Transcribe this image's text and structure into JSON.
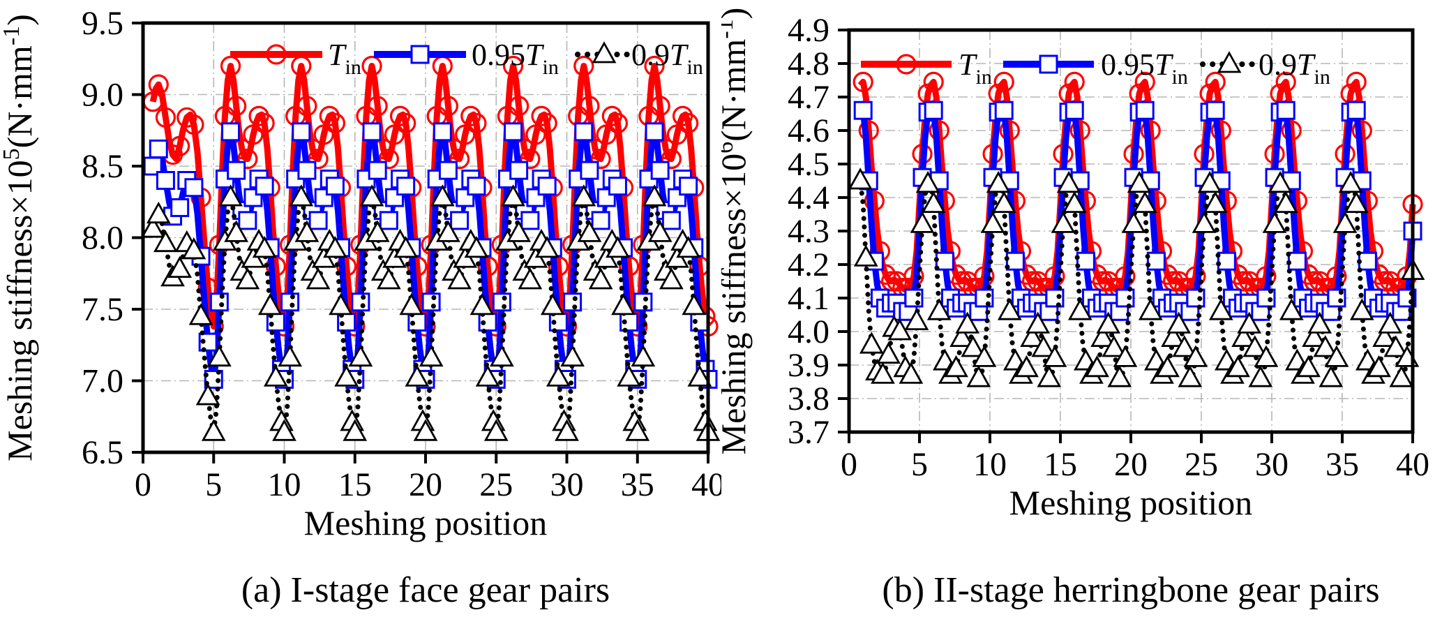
{
  "chart_data": [
    {
      "id": "a",
      "type": "line",
      "caption": "(a) I-stage face gear pairs",
      "xlabel": "Meshing position",
      "ylabel_parts": [
        {
          "t": "Meshing stiffness×10"
        },
        {
          "sup": "5"
        },
        {
          "t": "(N·mm"
        },
        {
          "sup": "-1"
        },
        {
          "t": ")"
        }
      ],
      "xlim": [
        0,
        40
      ],
      "ylim": [
        6.5,
        9.5
      ],
      "xticks": [
        0,
        5,
        10,
        15,
        20,
        25,
        30,
        35,
        40
      ],
      "xtick_labels": [
        "0",
        "5",
        "10",
        "15",
        "20",
        "25",
        "30",
        "35",
        "40"
      ],
      "yticks": [
        6.5,
        7.0,
        7.5,
        8.0,
        8.5,
        9.0,
        9.5
      ],
      "ytick_labels": [
        "6.5",
        "7.0",
        "7.5",
        "8.0",
        "8.5",
        "9.0",
        "9.5"
      ],
      "grid_x": [
        5,
        10,
        15,
        20,
        25,
        30,
        35
      ],
      "grid_y": [
        7.0,
        7.5,
        8.0,
        8.5,
        9.0
      ],
      "grid": true,
      "legend_position": "top-inside",
      "period": 5,
      "periods": 8,
      "phase": [
        0,
        0.2,
        0.4,
        0.6,
        0.8,
        1,
        1.2,
        1.4,
        1.6,
        1.8,
        2,
        2.2,
        2.4,
        2.6,
        2.8,
        3,
        3.2,
        3.4,
        3.6,
        3.8,
        4,
        4.2,
        4.4,
        4.6,
        4.8
      ],
      "legend": [
        {
          "prefix": "",
          "main": "T",
          "sub": "in"
        },
        {
          "prefix": "0.95",
          "main": "T",
          "sub": "in"
        },
        {
          "prefix": "0.9",
          "main": "T",
          "sub": "in"
        }
      ],
      "series": [
        {
          "name": "Tin",
          "color": "#ff0000",
          "line": "solid",
          "marker": "circle",
          "first_phase": [
            0.7,
            0.9,
            1.1,
            1.35,
            1.6,
            1.85,
            2.1,
            2.35,
            2.6,
            2.85,
            3.1,
            3.35,
            3.6,
            3.85,
            4.1,
            4.35,
            4.6,
            4.8
          ],
          "first_values": [
            8.95,
            9.04,
            9.07,
            9.0,
            8.84,
            8.68,
            8.58,
            8.55,
            8.64,
            8.76,
            8.84,
            8.86,
            8.79,
            8.6,
            8.28,
            7.95,
            7.65,
            7.48
          ],
          "values": [
            7.38,
            7.55,
            7.95,
            8.45,
            8.85,
            9.1,
            9.2,
            9.1,
            8.92,
            8.74,
            8.62,
            8.56,
            8.55,
            8.62,
            8.72,
            8.8,
            8.85,
            8.86,
            8.8,
            8.62,
            8.35,
            8.05,
            7.8,
            7.6,
            7.45
          ]
        },
        {
          "name": "0.95Tin",
          "color": "#0000ff",
          "line": "solid",
          "marker": "square",
          "first_phase": [
            0.7,
            0.9,
            1.1,
            1.35,
            1.6,
            1.85,
            2.1,
            2.35,
            2.6,
            2.85,
            3.1,
            3.35,
            3.6,
            3.85,
            4.1,
            4.35,
            4.6,
            4.8
          ],
          "first_values": [
            8.5,
            8.59,
            8.62,
            8.55,
            8.4,
            8.25,
            8.15,
            8.12,
            8.21,
            8.32,
            8.4,
            8.42,
            8.35,
            8.17,
            7.87,
            7.55,
            7.27,
            7.11
          ],
          "values": [
            7.01,
            7.17,
            7.55,
            8.03,
            8.41,
            8.65,
            8.74,
            8.65,
            8.47,
            8.3,
            8.19,
            8.13,
            8.12,
            8.19,
            8.28,
            8.36,
            8.41,
            8.42,
            8.36,
            8.19,
            7.93,
            7.65,
            7.41,
            7.22,
            7.08
          ]
        },
        {
          "name": "0.9Tin",
          "color": "#000000",
          "line": "dotted",
          "marker": "triangle",
          "first_phase": [
            0.7,
            0.9,
            1.1,
            1.35,
            1.6,
            1.85,
            2.1,
            2.35,
            2.6,
            2.85,
            3.1,
            3.35,
            3.6,
            3.85,
            4.1,
            4.35,
            4.6,
            4.8
          ],
          "first_values": [
            8.06,
            8.14,
            8.16,
            8.1,
            7.96,
            7.81,
            7.72,
            7.7,
            7.78,
            7.88,
            7.96,
            7.97,
            7.91,
            7.74,
            7.45,
            7.16,
            6.89,
            6.73
          ],
          "values": [
            6.64,
            6.8,
            7.16,
            7.61,
            7.97,
            8.19,
            8.28,
            8.19,
            8.03,
            7.87,
            7.76,
            7.7,
            7.7,
            7.76,
            7.85,
            7.92,
            7.97,
            7.97,
            7.92,
            7.76,
            7.52,
            7.25,
            7.02,
            6.84,
            6.71
          ]
        }
      ]
    },
    {
      "id": "b",
      "type": "line",
      "caption": "(b) II-stage herringbone gear pairs",
      "xlabel": "Meshing position",
      "ylabel_parts": [
        {
          "t": "Meshing stiffness×10"
        },
        {
          "sup": "6"
        },
        {
          "t": "(N·mm"
        },
        {
          "sup": "-1"
        },
        {
          "t": ")"
        }
      ],
      "xlim": [
        0,
        40
      ],
      "ylim": [
        3.7,
        4.9
      ],
      "xticks": [
        0,
        5,
        10,
        15,
        20,
        25,
        30,
        35,
        40
      ],
      "xtick_labels": [
        "0",
        "5",
        "10",
        "15",
        "20",
        "25",
        "30",
        "35",
        "40"
      ],
      "yticks": [
        3.7,
        3.8,
        3.9,
        4.0,
        4.1,
        4.2,
        4.3,
        4.4,
        4.5,
        4.6,
        4.7,
        4.8,
        4.9
      ],
      "ytick_labels": [
        "3.7",
        "3.8",
        "3.9",
        "4.0",
        "4.1",
        "4.2",
        "4.3",
        "4.4",
        "4.5",
        "4.6",
        "4.7",
        "4.8",
        "4.9"
      ],
      "grid_x": [
        5,
        10,
        15,
        20,
        25,
        30,
        35
      ],
      "grid_y": [
        3.8,
        3.9,
        4.0,
        4.1,
        4.2,
        4.3,
        4.4,
        4.5,
        4.6,
        4.7,
        4.8
      ],
      "grid": true,
      "legend_position": "top-inside",
      "period": 5,
      "periods": 8,
      "phase": [
        0,
        0.2,
        0.4,
        0.6,
        0.8,
        1,
        1.2,
        1.4,
        1.6,
        1.8,
        2,
        2.2,
        2.4,
        2.6,
        2.8,
        3,
        3.2,
        3.4,
        3.6,
        3.8,
        4,
        4.2,
        4.4,
        4.6,
        4.8
      ],
      "legend": [
        {
          "prefix": "",
          "main": "T",
          "sub": "in"
        },
        {
          "prefix": "0.95",
          "main": "T",
          "sub": "in"
        },
        {
          "prefix": "0.9",
          "main": "T",
          "sub": "in"
        }
      ],
      "series": [
        {
          "name": "Tin",
          "color": "#ff0000",
          "line": "solid",
          "marker": "circle",
          "start_phase": 0.8,
          "values": [
            4.38,
            4.53,
            4.64,
            4.71,
            4.735,
            4.745,
            4.7,
            4.6,
            4.49,
            4.39,
            4.3,
            4.24,
            4.195,
            4.17,
            4.155,
            4.15,
            4.155,
            4.15,
            4.14,
            4.13,
            4.125,
            4.13,
            4.14,
            4.165,
            4.24
          ]
        },
        {
          "name": "0.95Tin",
          "color": "#0000ff",
          "line": "solid",
          "marker": "square",
          "start_phase": 0.8,
          "values": [
            4.3,
            4.46,
            4.58,
            4.655,
            4.68,
            4.66,
            4.58,
            4.45,
            4.32,
            4.21,
            4.14,
            4.1,
            4.08,
            4.07,
            4.075,
            4.085,
            4.09,
            4.085,
            4.07,
            4.06,
            4.055,
            4.06,
            4.07,
            4.1,
            4.17
          ]
        },
        {
          "name": "0.9Tin",
          "color": "#000000",
          "line": "dotted",
          "marker": "triangle",
          "start_phase": 0.6,
          "values": [
            4.18,
            4.32,
            4.41,
            4.44,
            4.45,
            4.38,
            4.22,
            4.06,
            3.96,
            3.91,
            3.88,
            3.87,
            3.87,
            3.89,
            3.93,
            3.98,
            4.01,
            4.02,
            4.0,
            3.95,
            3.89,
            3.86,
            3.87,
            3.92,
            4.03
          ]
        }
      ]
    }
  ]
}
